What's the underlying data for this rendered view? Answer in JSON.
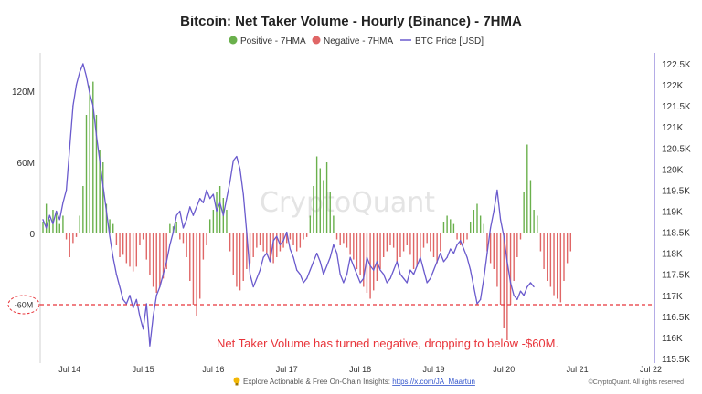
{
  "chart_data": {
    "type": "bar",
    "title": "Bitcoin: Net Taker Volume - Hourly (Binance) - 7HMA",
    "legend": [
      {
        "key": "positive",
        "label": "Positive - 7HMA",
        "color": "#6ab04c",
        "marker": "dot"
      },
      {
        "key": "negative",
        "label": "Negative - 7HMA",
        "color": "#e06666",
        "marker": "dot"
      },
      {
        "key": "price",
        "label": "BTC Price [USD]",
        "color": "#6a5acd",
        "marker": "line"
      }
    ],
    "legend_position": "top-center",
    "y_left": {
      "ticks": [
        "120M",
        "60M",
        "0"
      ],
      "tick_values": [
        120,
        60,
        0
      ],
      "range": [
        -100,
        140
      ]
    },
    "y_right": {
      "ticks": [
        "122.5K",
        "122K",
        "121.5K",
        "121K",
        "120.5K",
        "120K",
        "119.5K",
        "119K",
        "118.5K",
        "118K",
        "117.5K",
        "117K",
        "116.5K",
        "116K",
        "115.5K"
      ],
      "tick_values": [
        122.5,
        122,
        121.5,
        121,
        120.5,
        120,
        119.5,
        119,
        118.5,
        118,
        117.5,
        117,
        116.5,
        116,
        115.5
      ],
      "range": [
        115.4,
        122.65
      ]
    },
    "x_axis": {
      "ticks": [
        "Jul 14",
        "Jul 15",
        "Jul 16",
        "Jul 17",
        "Jul 18",
        "Jul 19",
        "Jul 20",
        "Jul 21",
        "Jul 22"
      ],
      "tick_index": [
        8,
        30,
        51,
        73,
        95,
        117,
        138,
        160,
        182
      ],
      "range": [
        0,
        182
      ]
    },
    "net_taker_volume_M": [
      10,
      25,
      12,
      20,
      18,
      8,
      15,
      -5,
      -20,
      -8,
      -3,
      15,
      40,
      100,
      125,
      128,
      100,
      70,
      60,
      25,
      12,
      8,
      -10,
      -20,
      -18,
      -25,
      -28,
      -32,
      -28,
      -10,
      -5,
      -22,
      -35,
      -45,
      -50,
      -45,
      -38,
      -30,
      8,
      6,
      10,
      -5,
      -8,
      -20,
      -40,
      -60,
      -70,
      -55,
      -22,
      -10,
      12,
      20,
      35,
      40,
      30,
      20,
      -15,
      -35,
      -45,
      -48,
      -40,
      -30,
      -25,
      -20,
      -12,
      -10,
      -15,
      -18,
      -22,
      -25,
      -20,
      -15,
      -12,
      -8,
      -5,
      -10,
      -15,
      -12,
      -5,
      -3,
      15,
      40,
      65,
      55,
      45,
      60,
      35,
      15,
      -5,
      -10,
      -8,
      -12,
      -18,
      -22,
      -30,
      -35,
      -45,
      -50,
      -55,
      -48,
      -40,
      -30,
      -20,
      -15,
      -10,
      -12,
      -25,
      -20,
      -15,
      -10,
      -18,
      -30,
      -28,
      -20,
      -12,
      -8,
      -15,
      -20,
      -25,
      -15,
      10,
      15,
      12,
      8,
      -5,
      -10,
      -8,
      -5,
      10,
      20,
      25,
      15,
      8,
      -15,
      -25,
      -30,
      -45,
      -60,
      -80,
      -90,
      -60,
      -40,
      -20,
      -5,
      35,
      75,
      45,
      20,
      15,
      -15,
      -30,
      -40,
      -45,
      -52,
      -55,
      -58,
      -40,
      -25,
      -15
    ],
    "btc_price_K": [
      118.8,
      118.6,
      118.9,
      118.7,
      119,
      118.8,
      119.2,
      119.5,
      120.5,
      121.5,
      122,
      122.3,
      122.5,
      122.2,
      121.8,
      121.5,
      120.8,
      120.2,
      119.6,
      119,
      118.4,
      117.9,
      117.5,
      117.2,
      116.9,
      116.8,
      117,
      116.7,
      116.9,
      116.5,
      116.2,
      116.8,
      115.8,
      116.5,
      117,
      117.2,
      117.5,
      117.8,
      118.2,
      118.5,
      118.9,
      119,
      118.6,
      118.8,
      119.1,
      118.9,
      119.1,
      119.3,
      119.2,
      119.5,
      119.3,
      119.4,
      119,
      119.2,
      118.9,
      119.3,
      119.7,
      120.2,
      120.3,
      120,
      119.4,
      118.5,
      117.5,
      117.2,
      117.4,
      117.6,
      117.9,
      118,
      117.8,
      118.3,
      118.4,
      118.2,
      118.3,
      118.5,
      118.1,
      117.9,
      117.6,
      117.5,
      117.3,
      117.4,
      117.6,
      117.8,
      118,
      117.8,
      117.5,
      117.7,
      117.9,
      118.2,
      118,
      117.5,
      117.3,
      117.5,
      117.9,
      117.7,
      117.5,
      117.3,
      117.4,
      117.9,
      117.7,
      117.6,
      117.8,
      117.6,
      117.5,
      117.3,
      117.4,
      117.6,
      117.8,
      117.5,
      117.4,
      117.3,
      117.6,
      117.5,
      117.7,
      117.9,
      117.6,
      117.3,
      117.4,
      117.6,
      117.8,
      118,
      117.8,
      117.9,
      118.1,
      118,
      118.2,
      118.3,
      118.1,
      117.9,
      117.6,
      117.2,
      116.8,
      116.9,
      117.4,
      118,
      118.6,
      119,
      119.5,
      118.8,
      118.4,
      117.8,
      117.3,
      117,
      116.9,
      117.1,
      117,
      117.2,
      117.3,
      117.2
    ],
    "reference_line": {
      "value": -60,
      "label": "-60M",
      "color": "#e8343a",
      "style": "dashed"
    },
    "annotation": "Net Taker Volume has turned negative, dropping to below -$60M.",
    "watermark": "CryptoQuant",
    "grid": false
  },
  "footer": {
    "text": "Explore Actionable & Free On-Chain Insights: ",
    "link": "https://x.com/JA_Maartun",
    "copyright": "©CryptoQuant. All rights reserved"
  }
}
